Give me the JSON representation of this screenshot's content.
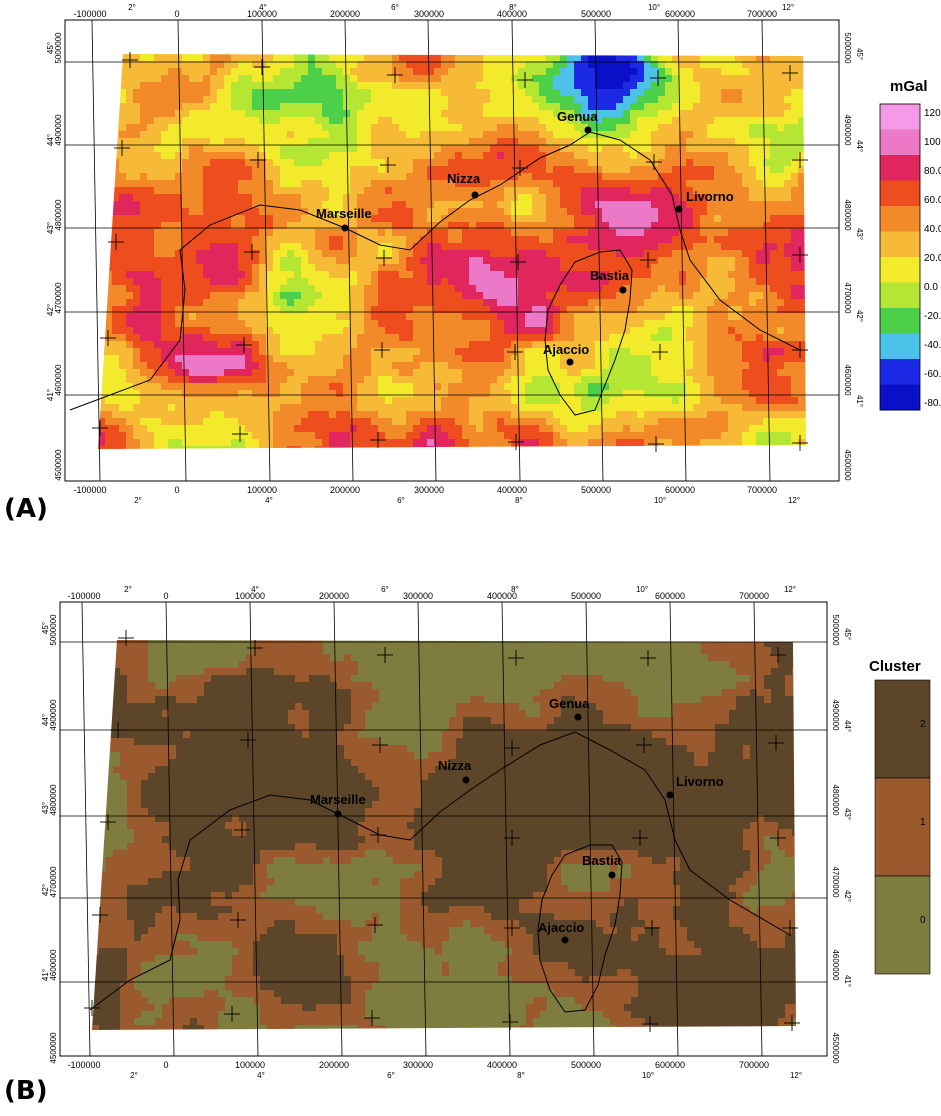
{
  "panels": [
    {
      "id": "A",
      "label": "(A)",
      "legend": {
        "title": "mGal",
        "type": "continuous",
        "ticks": [
          "120.0",
          "100.0",
          "80.0",
          "60.0",
          "40.0",
          "20.0",
          "0.0",
          "-20.0",
          "-40.0",
          "-60.0",
          "-80.0"
        ],
        "colors": [
          "#f59ae6",
          "#ec79c8",
          "#e0265c",
          "#ee4e1e",
          "#f28a2a",
          "#f6ba36",
          "#f2ea2a",
          "#b6e634",
          "#4cd04a",
          "#4cc2ea",
          "#1c2ae6",
          "#0a10c8"
        ]
      },
      "cities": [
        "Genua",
        "Nizza",
        "Marseille",
        "Livorno",
        "Bastia",
        "Ajaccio"
      ]
    },
    {
      "id": "B",
      "label": "(B)",
      "legend": {
        "title": "Cluster",
        "type": "categorical",
        "classes": [
          "2",
          "1",
          "0"
        ],
        "colors": [
          "#5c4529",
          "#9b5a2e",
          "#7e7c3e"
        ]
      },
      "cities": [
        "Genua",
        "Nizza",
        "Marseille",
        "Livorno",
        "Bastia",
        "Ajaccio"
      ]
    }
  ],
  "axes": {
    "easting_ticks": [
      "-100000",
      "0",
      "100000",
      "200000",
      "300000",
      "400000",
      "500000",
      "600000",
      "700000"
    ],
    "northing_ticks": [
      "5000000",
      "4900000",
      "4800000",
      "4700000",
      "4600000",
      "4500000"
    ],
    "longitude_ticks": [
      "2°",
      "4°",
      "6°",
      "8°",
      "10°",
      "12°"
    ],
    "latitude_ticks": [
      "45°",
      "44°",
      "43°",
      "42°",
      "41°"
    ]
  }
}
